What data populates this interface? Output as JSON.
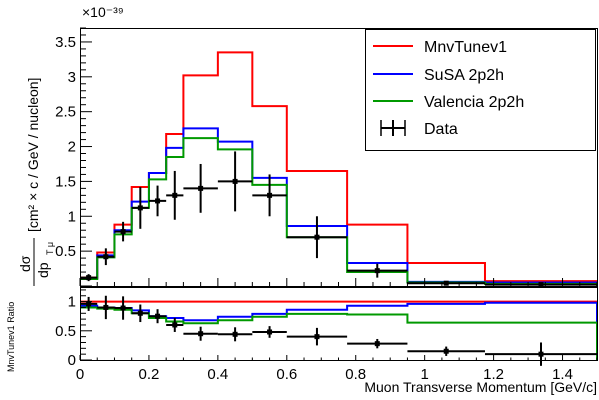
{
  "chart_data": [
    {
      "type": "line",
      "scale_label": "×10⁻³⁹",
      "ylabel_main": "[cm² × c / GeV / nucleon]",
      "ylabel_frac_num": "dσ",
      "ylabel_frac_den": "dp",
      "ylabel_frac_sub": "T μ",
      "xlim": [
        0,
        1.5
      ],
      "ylim": [
        0,
        3.7
      ],
      "yticks": [
        0.5,
        1,
        1.5,
        2,
        2.5,
        3,
        3.5
      ],
      "ytick_labels": [
        "0.5",
        "1",
        "1.5",
        "2",
        "2.5",
        "3",
        "3.5"
      ],
      "bin_edges": [
        0,
        0.05,
        0.1,
        0.15,
        0.2,
        0.25,
        0.3,
        0.4,
        0.5,
        0.6,
        0.775,
        0.95,
        1.175,
        1.5
      ],
      "series": [
        {
          "name": "MnvTunev1",
          "color": "#ff0000",
          "values": [
            0.12,
            0.48,
            0.88,
            1.42,
            1.62,
            2.18,
            3.02,
            3.35,
            2.58,
            1.65,
            0.88,
            0.33,
            0.07
          ]
        },
        {
          "name": "SuSA 2p2h",
          "color": "#0000ff",
          "values": [
            0.11,
            0.44,
            0.8,
            1.21,
            1.62,
            1.98,
            2.26,
            2.07,
            1.55,
            0.86,
            0.33,
            0.06,
            0.05
          ]
        },
        {
          "name": "Valencia 2p2h",
          "color": "#009900",
          "values": [
            0.1,
            0.41,
            0.74,
            1.12,
            1.53,
            1.85,
            2.12,
            1.96,
            1.45,
            0.7,
            0.2,
            0.05,
            0.03
          ]
        }
      ],
      "data_points": {
        "name": "Data",
        "x": [
          0.025,
          0.075,
          0.125,
          0.175,
          0.225,
          0.275,
          0.35,
          0.45,
          0.55,
          0.6875,
          0.8625,
          1.0625,
          1.3375
        ],
        "y": [
          0.12,
          0.42,
          0.78,
          1.12,
          1.22,
          1.3,
          1.4,
          1.5,
          1.3,
          0.7,
          0.22,
          0.04,
          0.02
        ],
        "yerr": [
          0.05,
          0.12,
          0.14,
          0.3,
          0.22,
          0.35,
          0.35,
          0.43,
          0.3,
          0.3,
          0.1,
          0.03,
          0.02
        ]
      },
      "legend_location": "top-right"
    },
    {
      "type": "line",
      "ylabel": "MnvTunev1 Ratio",
      "xlabel": "Muon Transverse Momentum [GeV/c]",
      "xlim": [
        0,
        1.5
      ],
      "ylim": [
        0,
        1.25
      ],
      "xticks": [
        0,
        0.2,
        0.4,
        0.6,
        0.8,
        1,
        1.2,
        1.4
      ],
      "xtick_labels": [
        "0",
        "0.2",
        "0.4",
        "0.6",
        "0.8",
        "1",
        "1.2",
        "1.4"
      ],
      "yticks": [
        0,
        0.5,
        1
      ],
      "ytick_labels": [
        "0",
        "0.5",
        "1"
      ],
      "bin_edges": [
        0,
        0.05,
        0.1,
        0.15,
        0.2,
        0.25,
        0.3,
        0.4,
        0.5,
        0.6,
        0.775,
        0.95,
        1.175,
        1.5
      ],
      "series": [
        {
          "name": "MnvTunev1",
          "color": "#ff0000",
          "values": [
            1,
            1,
            1,
            1,
            1,
            1,
            1,
            1,
            1,
            1,
            1,
            1,
            1
          ]
        },
        {
          "name": "SuSA 2p2h",
          "color": "#0000ff",
          "values": [
            0.93,
            0.9,
            0.89,
            0.85,
            0.75,
            0.72,
            0.68,
            0.74,
            0.79,
            0.86,
            0.93,
            0.96,
            0.98
          ]
        },
        {
          "name": "Valencia 2p2h",
          "color": "#009900",
          "values": [
            0.9,
            0.88,
            0.86,
            0.8,
            0.72,
            0.66,
            0.63,
            0.68,
            0.74,
            0.79,
            0.78,
            0.64,
            0.64
          ]
        }
      ],
      "data_points": {
        "name": "Data",
        "x": [
          0.025,
          0.075,
          0.125,
          0.175,
          0.225,
          0.275,
          0.35,
          0.45,
          0.55,
          0.6875,
          0.8625,
          1.0625,
          1.3375
        ],
        "y": [
          0.96,
          0.9,
          0.89,
          0.8,
          0.75,
          0.6,
          0.45,
          0.44,
          0.48,
          0.4,
          0.28,
          0.15,
          0.1
        ],
        "yerr": [
          0.12,
          0.2,
          0.2,
          0.15,
          0.12,
          0.12,
          0.12,
          0.12,
          0.1,
          0.15,
          0.08,
          0.08,
          0.2
        ]
      }
    }
  ]
}
